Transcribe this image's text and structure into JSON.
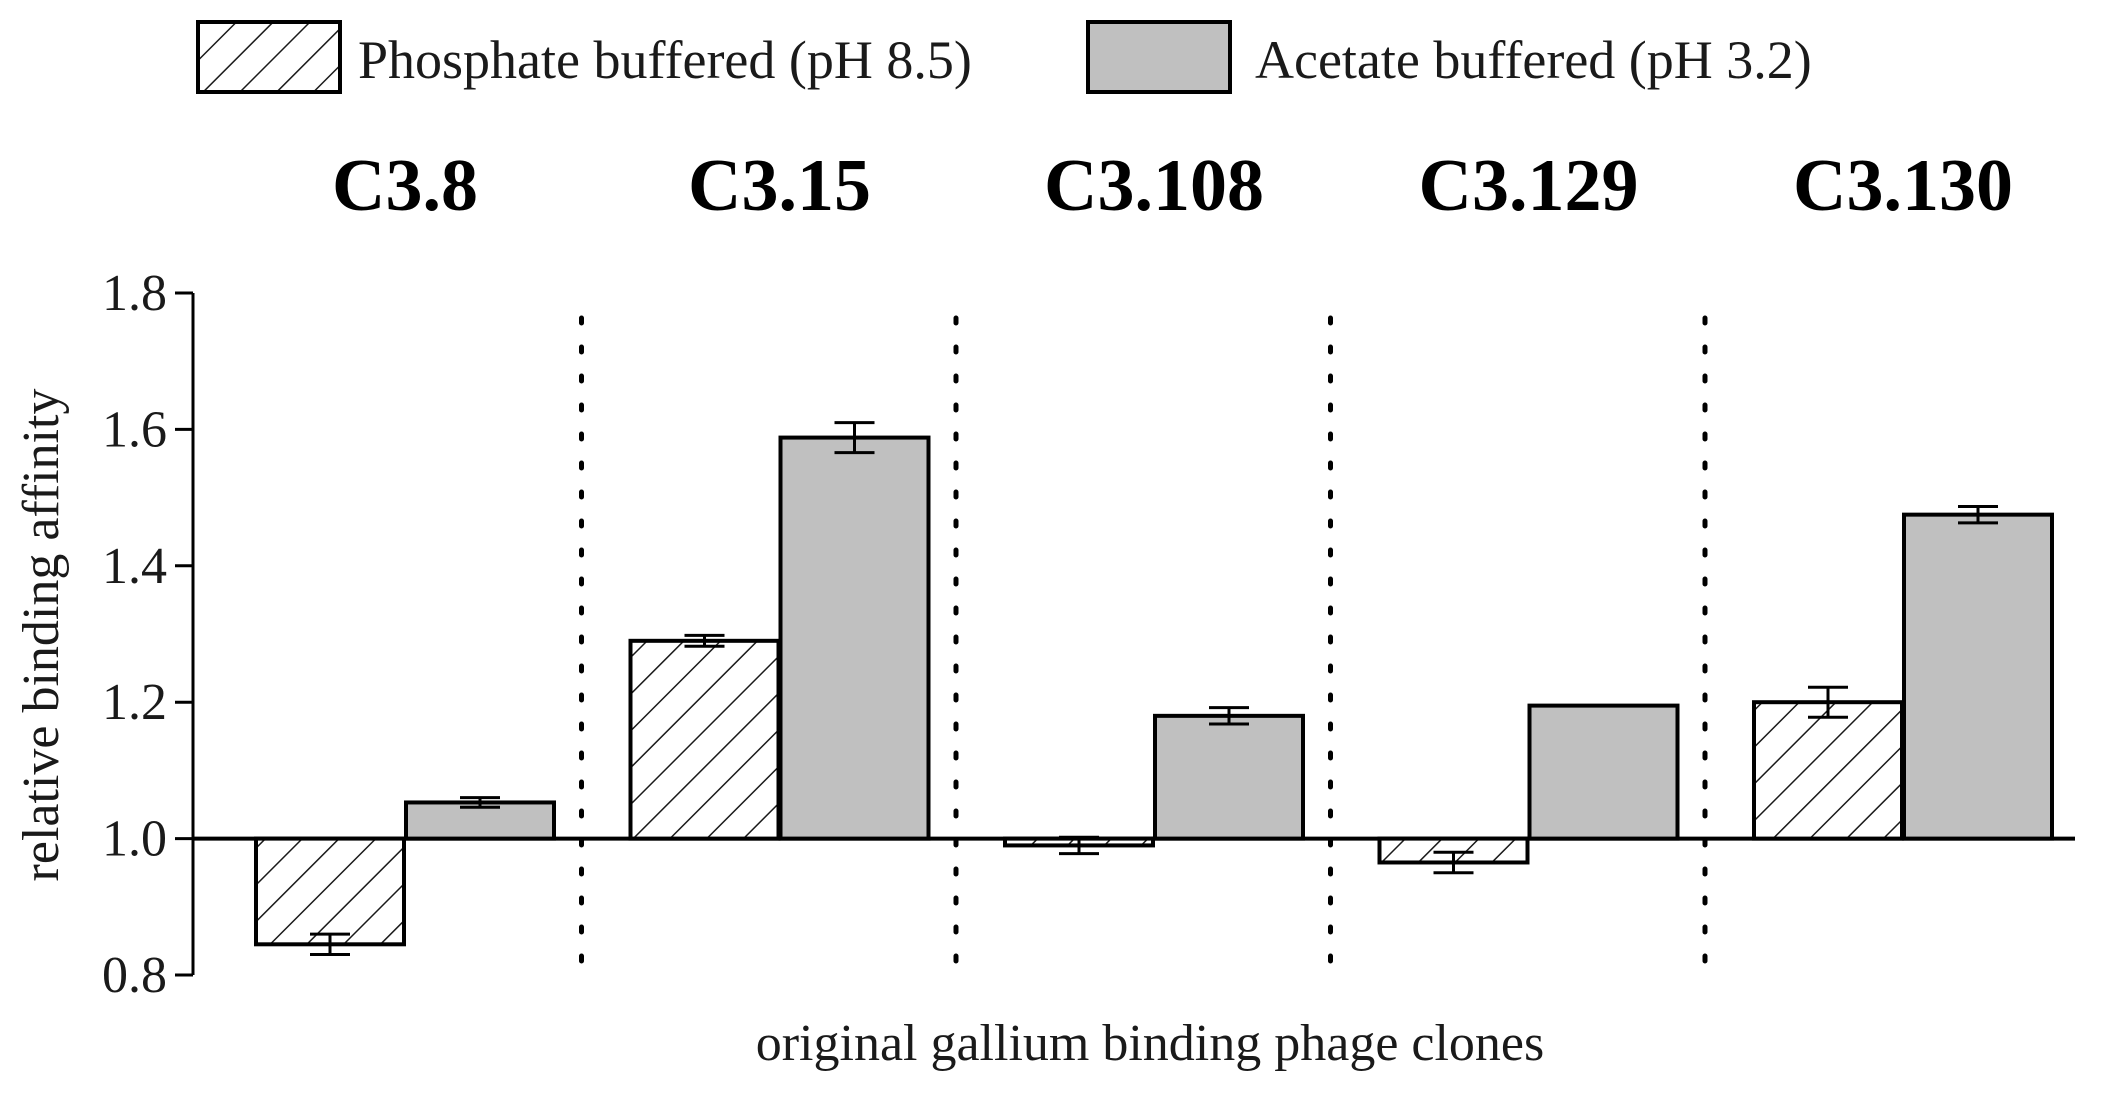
{
  "chart_data": {
    "type": "bar",
    "xlabel": "original gallium binding phage clones",
    "ylabel": "relative binding affinity",
    "ylim": [
      0.8,
      1.8
    ],
    "yticks": [
      "0.8",
      "1.0",
      "1.2",
      "1.4",
      "1.6",
      "1.8"
    ],
    "baseline": 1.0,
    "legend_position": "top-center",
    "grid": false,
    "categories": [
      "C3.8",
      "C3.15",
      "C3.108",
      "C3.129",
      "C3.130"
    ],
    "series": [
      {
        "name": "Phosphate buffered (pH 8.5)",
        "pattern": "hatched",
        "color": "#ffffff",
        "values": [
          0.845,
          1.29,
          0.99,
          0.965,
          1.2
        ],
        "errors": [
          0.015,
          0.008,
          0.012,
          0.015,
          0.022
        ]
      },
      {
        "name": "Acetate buffered (pH 3.2)",
        "pattern": "solid",
        "color": "#c0c0c0",
        "values": [
          1.053,
          1.588,
          1.18,
          1.195,
          1.475
        ],
        "errors": [
          0.007,
          0.022,
          0.012,
          0,
          0.012
        ]
      }
    ]
  }
}
